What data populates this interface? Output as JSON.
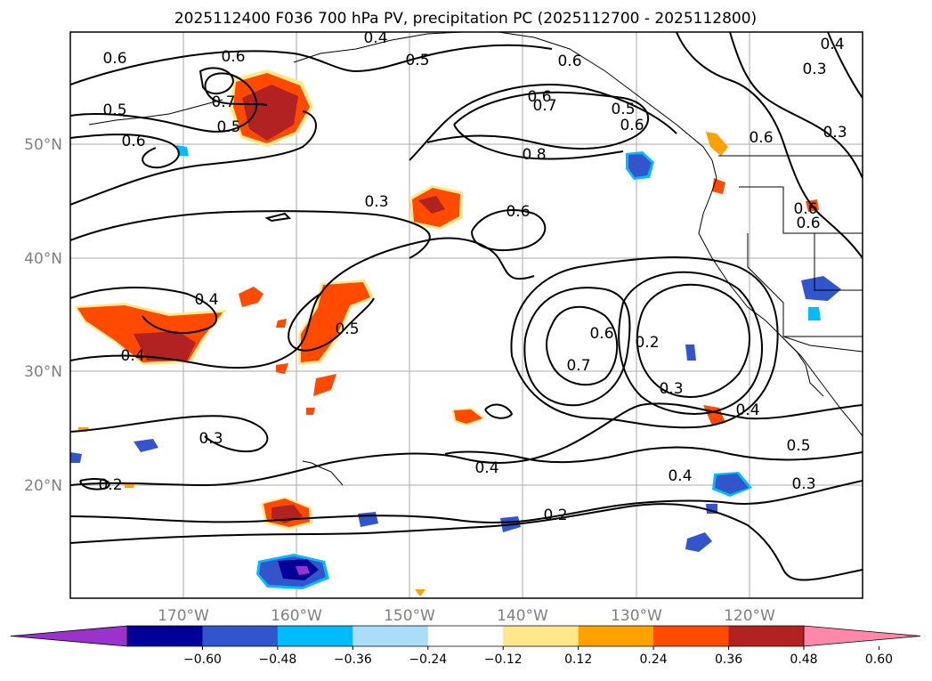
{
  "figure": {
    "title": "2025112400 F036 700 hPa PV, precipitation PC (2025112700 - 2025112800)"
  },
  "map": {
    "longitude_ticks": [
      "170°W",
      "160°W",
      "150°W",
      "140°W",
      "130°W",
      "120°W"
    ],
    "latitude_ticks": [
      "50°N",
      "40°N",
      "30°N",
      "20°N"
    ],
    "gridlines": true,
    "land_outline_color": "#000000",
    "contour_color": "#000000"
  },
  "contour_labels": [
    "0.6",
    "0.4",
    "0.5",
    "0.5",
    "0.5",
    "0.6",
    "0.7",
    "0.6",
    "0.6",
    "0.5",
    "0.6",
    "0.6",
    "0.3",
    "0.6",
    "0.4",
    "0.3",
    "0.8",
    "0.7",
    "0.6",
    "0.3",
    "0.4",
    "0.5",
    "0.6",
    "0.6",
    "0.6",
    "0.2",
    "0.7",
    "0.3",
    "0.4",
    "0.4",
    "0.3",
    "0.4",
    "0.5",
    "0.2",
    "0.4",
    "0.2",
    "0.3"
  ],
  "colorbar": {
    "ticks": [
      "−0.60",
      "−0.48",
      "−0.36",
      "−0.24",
      "−0.12",
      "0.12",
      "0.24",
      "0.36",
      "0.48",
      "0.60"
    ],
    "colors": [
      "#9933cc",
      "#000099",
      "#3355cc",
      "#00bbff",
      "#aaddf8",
      "#ffffff",
      "#ffe88a",
      "#ffa100",
      "#ff4a00",
      "#b22222",
      "#ff88aa"
    ],
    "extend": "both"
  }
}
